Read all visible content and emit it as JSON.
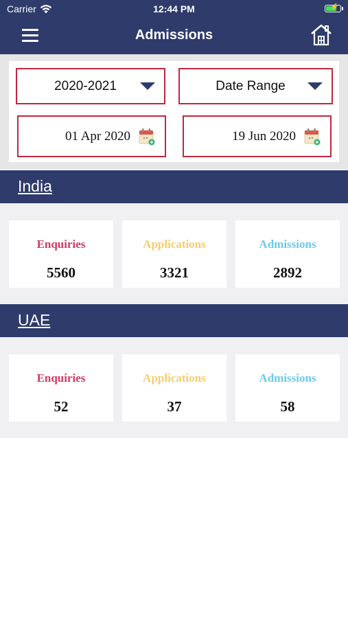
{
  "status_bar": {
    "carrier": "Carrier",
    "time": "12:44 PM"
  },
  "nav": {
    "title": "Admissions",
    "menu_icon": "hamburger-menu-icon",
    "home_icon": "home-icon"
  },
  "filters": {
    "year": "2020-2021",
    "range": "Date Range",
    "from_date": "01 Apr 2020",
    "to_date": "19 Jun 2020"
  },
  "colors": {
    "header": "#2e3b6b",
    "border": "#c0273d",
    "enquiries": "#d23a62",
    "applications": "#f5cd6c",
    "admissions": "#6cc9ee"
  },
  "regions": [
    {
      "name": "India",
      "stats": [
        {
          "label": "Enquiries",
          "value": "5560"
        },
        {
          "label": "Applications",
          "value": "3321"
        },
        {
          "label": "Admissions",
          "value": "2892"
        }
      ]
    },
    {
      "name": "UAE",
      "stats": [
        {
          "label": "Enquiries",
          "value": "52"
        },
        {
          "label": "Applications",
          "value": "37"
        },
        {
          "label": "Admissions",
          "value": "58"
        }
      ]
    }
  ]
}
